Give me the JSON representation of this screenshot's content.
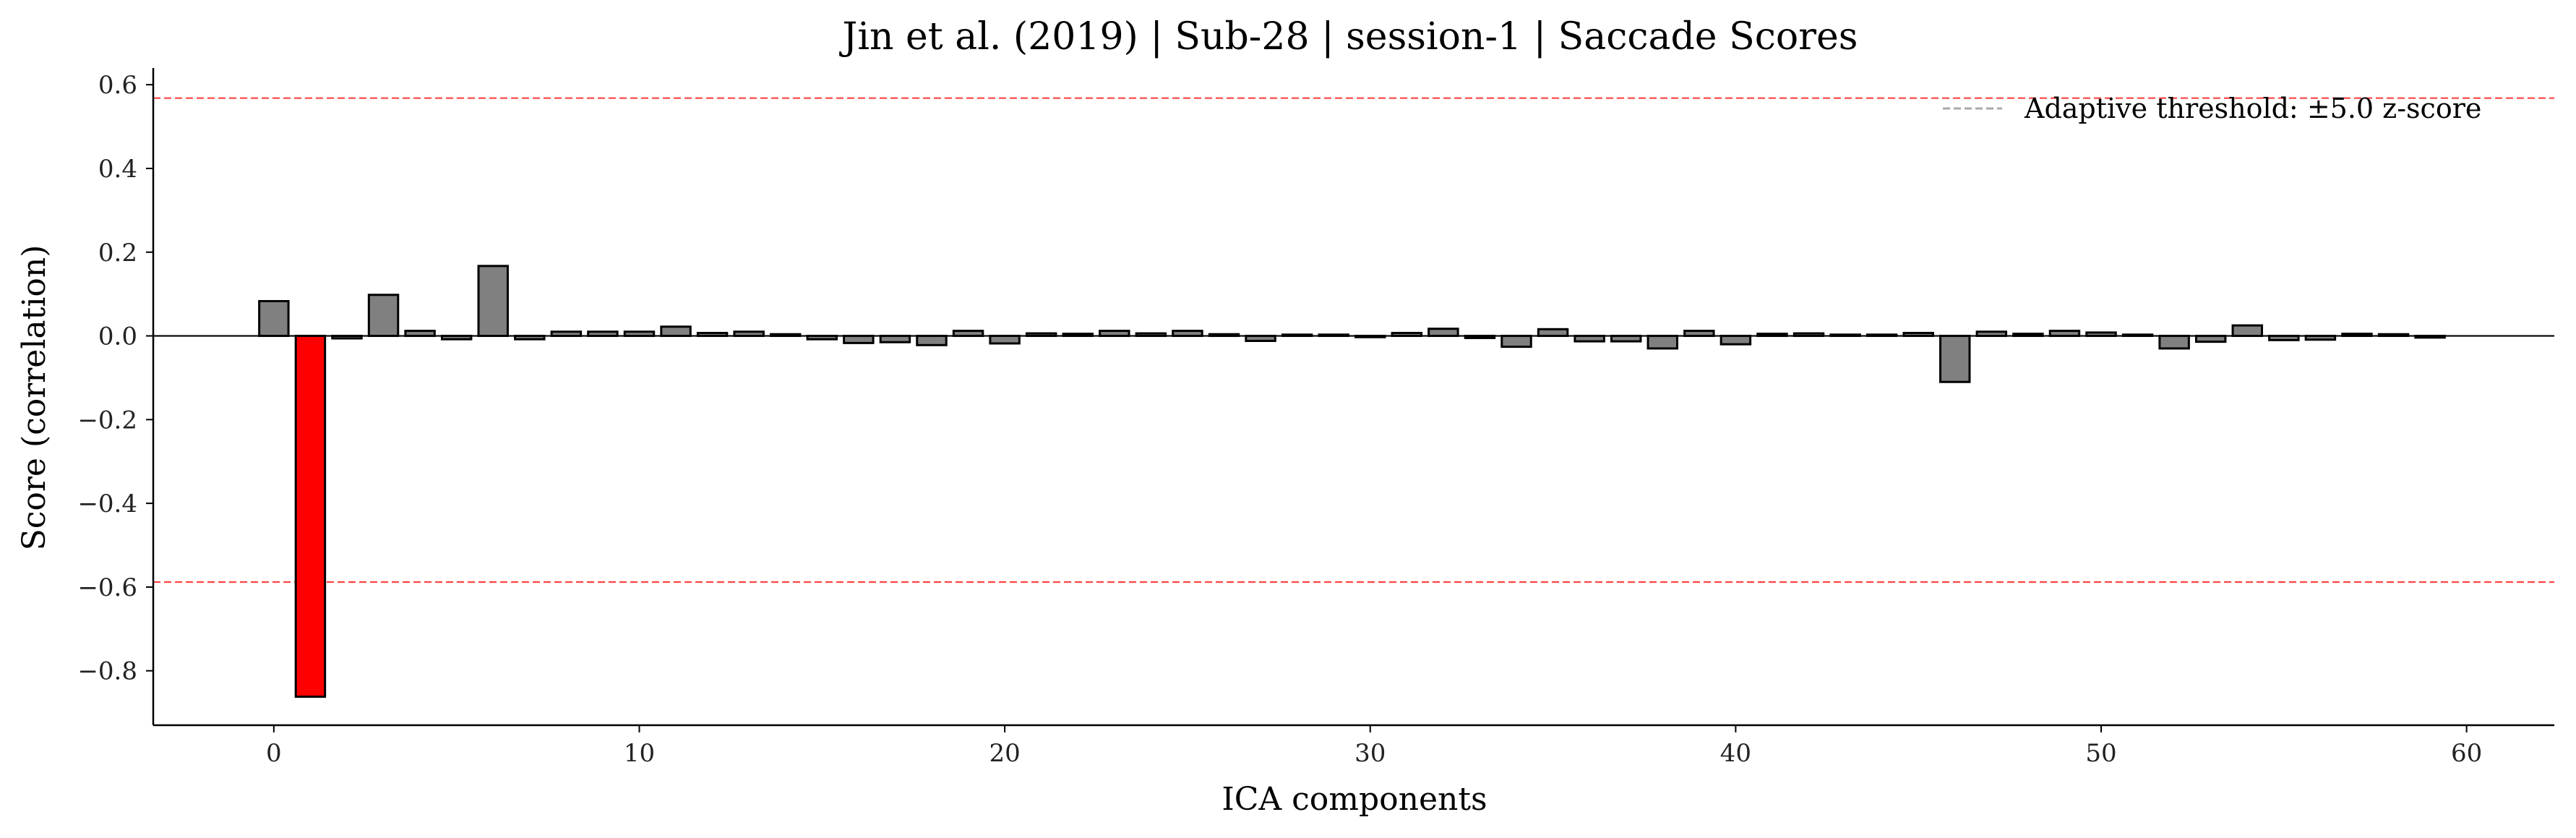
{
  "chart_data": {
    "type": "bar",
    "title": "Jin et al. (2019) | Sub-28 | session-1 | Saccade Scores",
    "xlabel": "ICA components",
    "ylabel": "Score (correlation)",
    "xlim": [
      -3.3,
      62.4
    ],
    "ylim": [
      -0.93,
      0.64
    ],
    "xticks": [
      0,
      10,
      20,
      30,
      40,
      50,
      60
    ],
    "yticks": [
      -0.8,
      -0.6,
      -0.4,
      -0.2,
      0.0,
      0.2,
      0.4,
      0.6
    ],
    "x": [
      0,
      1,
      2,
      3,
      4,
      5,
      6,
      7,
      8,
      9,
      10,
      11,
      12,
      13,
      14,
      15,
      16,
      17,
      18,
      19,
      20,
      21,
      22,
      23,
      24,
      25,
      26,
      27,
      28,
      29,
      30,
      31,
      32,
      33,
      34,
      35,
      36,
      37,
      38,
      39,
      40,
      41,
      42,
      43,
      44,
      45,
      46,
      47,
      48,
      49,
      50,
      51,
      52,
      53,
      54,
      55,
      56,
      57,
      58,
      59
    ],
    "values": [
      0.083,
      -0.862,
      -0.006,
      0.098,
      0.012,
      -0.008,
      0.167,
      -0.008,
      0.01,
      0.01,
      0.01,
      0.022,
      0.007,
      0.01,
      0.004,
      -0.008,
      -0.017,
      -0.015,
      -0.022,
      0.012,
      -0.018,
      0.006,
      0.005,
      0.012,
      0.006,
      0.012,
      0.004,
      -0.012,
      0.003,
      0.003,
      -0.003,
      0.007,
      0.017,
      -0.005,
      -0.026,
      0.016,
      -0.013,
      -0.013,
      -0.03,
      0.012,
      -0.02,
      0.005,
      0.006,
      0.003,
      0.003,
      0.007,
      -0.11,
      0.01,
      0.005,
      0.012,
      0.008,
      0.003,
      -0.03,
      -0.014,
      0.025,
      -0.01,
      -0.009,
      0.005,
      0.004,
      -0.004
    ],
    "flagged_index": 1,
    "bar_color": "#808080",
    "flagged_color": "#ff0000",
    "edge_color": "#000000",
    "thresholds": [
      0.568,
      -0.588
    ],
    "threshold_color": "#ff4444",
    "legend": {
      "label": "Adaptive threshold: ±5.0 z-score",
      "line_color": "#aaaaaa",
      "position": "upper right"
    },
    "grid": false
  }
}
